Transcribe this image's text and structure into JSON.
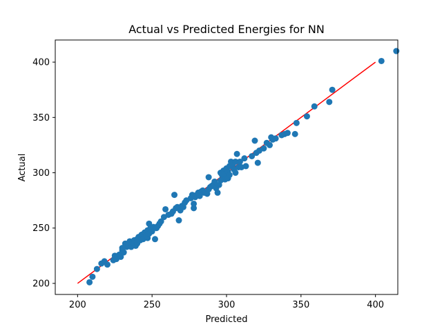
{
  "chart_data": {
    "type": "scatter",
    "title": "Actual vs Predicted Energies for NN",
    "xlabel": "Predicted",
    "ylabel": "Actual",
    "xlim": [
      185,
      415
    ],
    "ylim": [
      190,
      420
    ],
    "xticks": [
      200,
      250,
      300,
      350,
      400
    ],
    "yticks": [
      200,
      250,
      300,
      350,
      400
    ],
    "grid": false,
    "colors": {
      "points": "#1f77b4",
      "reference_line": "#ff0000"
    },
    "reference_line": {
      "x": [
        200,
        400
      ],
      "y": [
        200,
        400
      ]
    },
    "series": [
      {
        "points": [
          [
            208,
            201
          ],
          [
            210,
            206
          ],
          [
            213,
            213
          ],
          [
            216,
            218
          ],
          [
            218,
            220
          ],
          [
            220,
            217
          ],
          [
            224,
            221
          ],
          [
            225,
            225
          ],
          [
            226,
            222
          ],
          [
            227,
            224
          ],
          [
            228,
            226
          ],
          [
            229,
            224
          ],
          [
            230,
            230
          ],
          [
            230,
            232
          ],
          [
            231,
            228
          ],
          [
            232,
            236
          ],
          [
            233,
            233
          ],
          [
            234,
            234
          ],
          [
            235,
            238
          ],
          [
            236,
            233
          ],
          [
            237,
            237
          ],
          [
            238,
            239
          ],
          [
            239,
            234
          ],
          [
            240,
            236
          ],
          [
            240,
            240
          ],
          [
            241,
            242
          ],
          [
            242,
            239
          ],
          [
            243,
            244
          ],
          [
            244,
            240
          ],
          [
            245,
            246
          ],
          [
            246,
            243
          ],
          [
            247,
            241
          ],
          [
            247,
            248
          ],
          [
            248,
            245
          ],
          [
            248,
            254
          ],
          [
            249,
            250
          ],
          [
            250,
            247
          ],
          [
            251,
            251
          ],
          [
            252,
            240
          ],
          [
            253,
            250
          ],
          [
            254,
            252
          ],
          [
            255,
            254
          ],
          [
            256,
            256
          ],
          [
            258,
            260
          ],
          [
            259,
            267
          ],
          [
            261,
            262
          ],
          [
            263,
            263
          ],
          [
            264,
            265
          ],
          [
            265,
            280
          ],
          [
            266,
            268
          ],
          [
            267,
            269
          ],
          [
            268,
            257
          ],
          [
            269,
            266
          ],
          [
            270,
            270
          ],
          [
            271,
            269
          ],
          [
            272,
            273
          ],
          [
            273,
            275
          ],
          [
            276,
            277
          ],
          [
            277,
            280
          ],
          [
            278,
            268
          ],
          [
            278,
            272
          ],
          [
            279,
            278
          ],
          [
            280,
            280
          ],
          [
            281,
            282
          ],
          [
            282,
            279
          ],
          [
            283,
            283
          ],
          [
            284,
            284
          ],
          [
            285,
            282
          ],
          [
            286,
            282
          ],
          [
            287,
            281
          ],
          [
            288,
            285
          ],
          [
            288,
            296
          ],
          [
            289,
            287
          ],
          [
            290,
            288
          ],
          [
            291,
            289
          ],
          [
            292,
            292
          ],
          [
            293,
            286
          ],
          [
            294,
            282
          ],
          [
            295,
            289
          ],
          [
            296,
            293
          ],
          [
            296,
            300
          ],
          [
            297,
            298
          ],
          [
            298,
            302
          ],
          [
            299,
            299
          ],
          [
            299,
            294
          ],
          [
            300,
            304
          ],
          [
            301,
            295
          ],
          [
            301,
            301
          ],
          [
            302,
            298
          ],
          [
            302,
            306
          ],
          [
            303,
            310
          ],
          [
            304,
            307
          ],
          [
            305,
            303
          ],
          [
            306,
            310
          ],
          [
            306,
            300
          ],
          [
            307,
            317
          ],
          [
            308,
            305
          ],
          [
            309,
            310
          ],
          [
            310,
            305
          ],
          [
            312,
            313
          ],
          [
            313,
            306
          ],
          [
            317,
            315
          ],
          [
            319,
            329
          ],
          [
            320,
            318
          ],
          [
            321,
            309
          ],
          [
            322,
            320
          ],
          [
            325,
            322
          ],
          [
            327,
            327
          ],
          [
            329,
            325
          ],
          [
            330,
            332
          ],
          [
            331,
            330
          ],
          [
            333,
            331
          ],
          [
            337,
            334
          ],
          [
            339,
            335
          ],
          [
            341,
            336
          ],
          [
            347,
            345
          ],
          [
            346,
            335
          ],
          [
            354,
            351
          ],
          [
            359,
            360
          ],
          [
            369,
            364
          ],
          [
            371,
            375
          ],
          [
            404,
            401
          ],
          [
            414,
            410
          ]
        ]
      }
    ]
  }
}
